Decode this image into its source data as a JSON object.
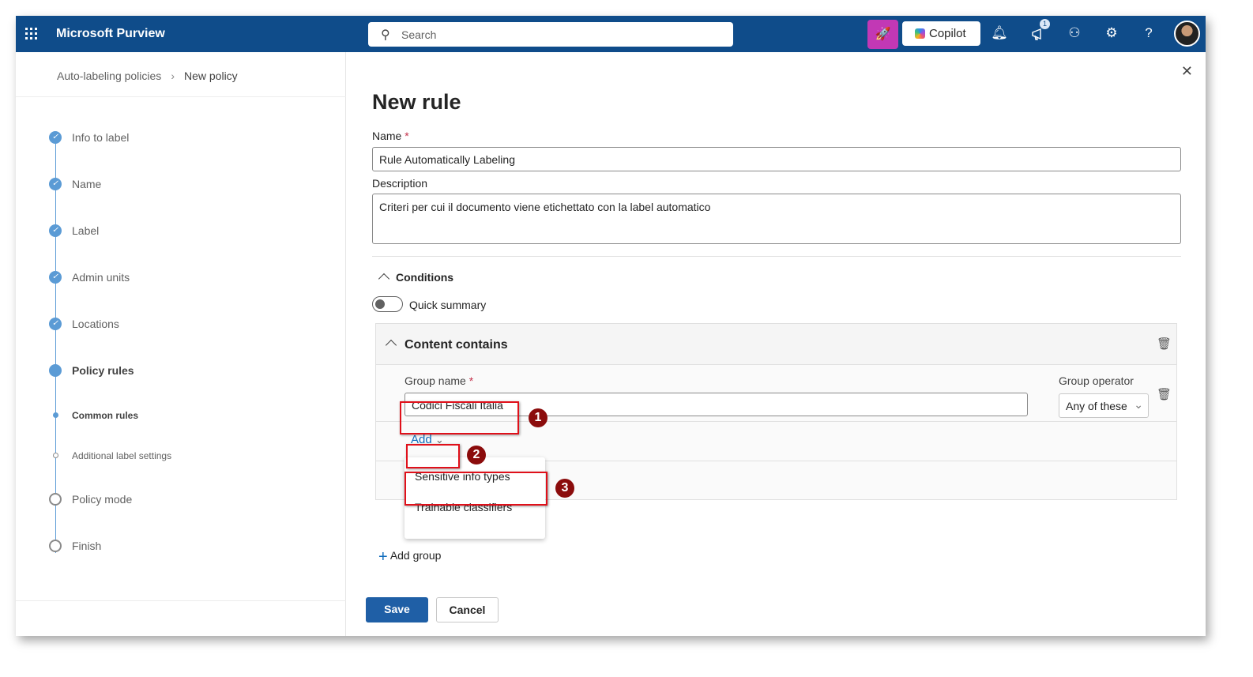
{
  "header": {
    "app_name": "Microsoft Purview",
    "search_placeholder": "Search",
    "copilot_label": "Copilot",
    "notification_count": "1",
    "brand_color": "#0f4c8a"
  },
  "breadcrumb": {
    "parent": "Auto-labeling policies",
    "current": "New policy"
  },
  "steps": [
    {
      "label": "Info to label",
      "status": "done"
    },
    {
      "label": "Name",
      "status": "done"
    },
    {
      "label": "Label",
      "status": "done"
    },
    {
      "label": "Admin units",
      "status": "done"
    },
    {
      "label": "Locations",
      "status": "done"
    },
    {
      "label": "Policy rules",
      "status": "current"
    },
    {
      "label": "Common rules",
      "status": "current-sub"
    },
    {
      "label": "Additional label settings",
      "status": "pending-sub"
    },
    {
      "label": "Policy mode",
      "status": "pending"
    },
    {
      "label": "Finish",
      "status": "pending"
    }
  ],
  "panel": {
    "title": "New rule",
    "name_label": "Name",
    "name_value": "Rule Automatically Labeling",
    "description_label": "Description",
    "description_value": "Criteri per cui il documento viene etichettato con la label automatico",
    "conditions_label": "Conditions",
    "quick_summary_label": "Quick summary",
    "quick_summary_on": false,
    "content_contains": "Content contains",
    "group_name_label": "Group name",
    "group_name_value": "Codici Fiscali Italia",
    "group_operator_label": "Group operator",
    "group_operator_value": "Any of these",
    "add_label": "Add",
    "add_menu": [
      "Sensitive info types",
      "Trainable classifiers"
    ],
    "add_group_label": "Add group",
    "save_label": "Save",
    "cancel_label": "Cancel"
  },
  "annotations": [
    "1",
    "2",
    "3"
  ]
}
